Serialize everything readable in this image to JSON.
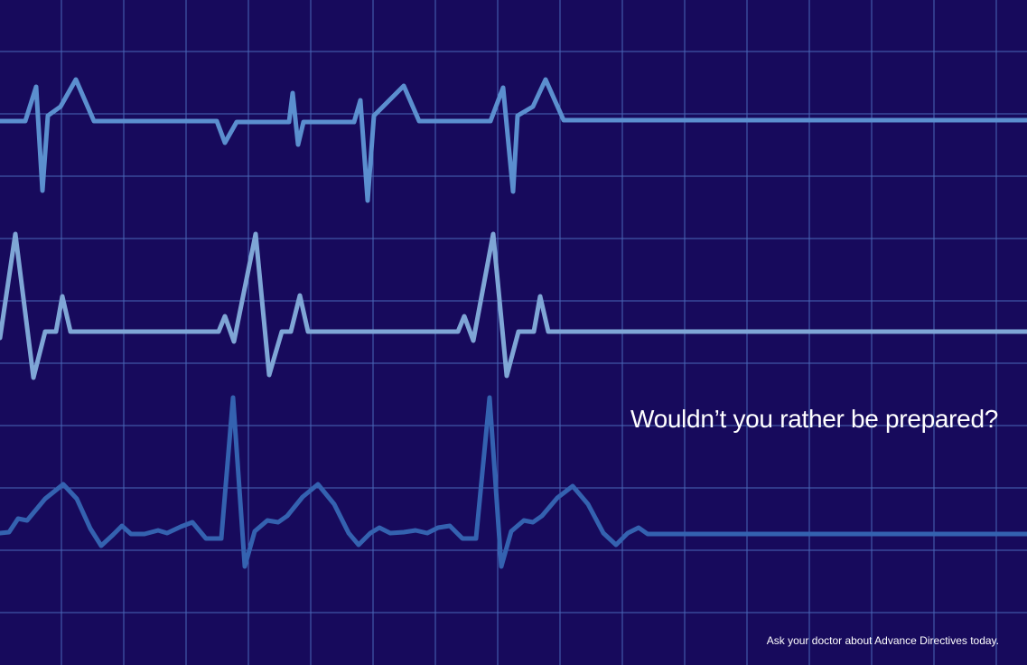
{
  "ad": {
    "headline": "Wouldn’t you rather be prepared?",
    "tagline": "Ask your doctor about Advance Directives today."
  },
  "colors": {
    "background": "#170a5c",
    "grid": "#4a68b8",
    "trace_1": "#5b8fcf",
    "trace_2": "#7fa6d6",
    "trace_3": "#3462b0"
  },
  "traces": [
    {
      "name": "ecg-trace-1",
      "color_key": "trace_1",
      "flatline": true
    },
    {
      "name": "ecg-trace-2",
      "color_key": "trace_2",
      "flatline": true
    },
    {
      "name": "ecg-trace-3",
      "color_key": "trace_3",
      "flatline": true
    }
  ]
}
